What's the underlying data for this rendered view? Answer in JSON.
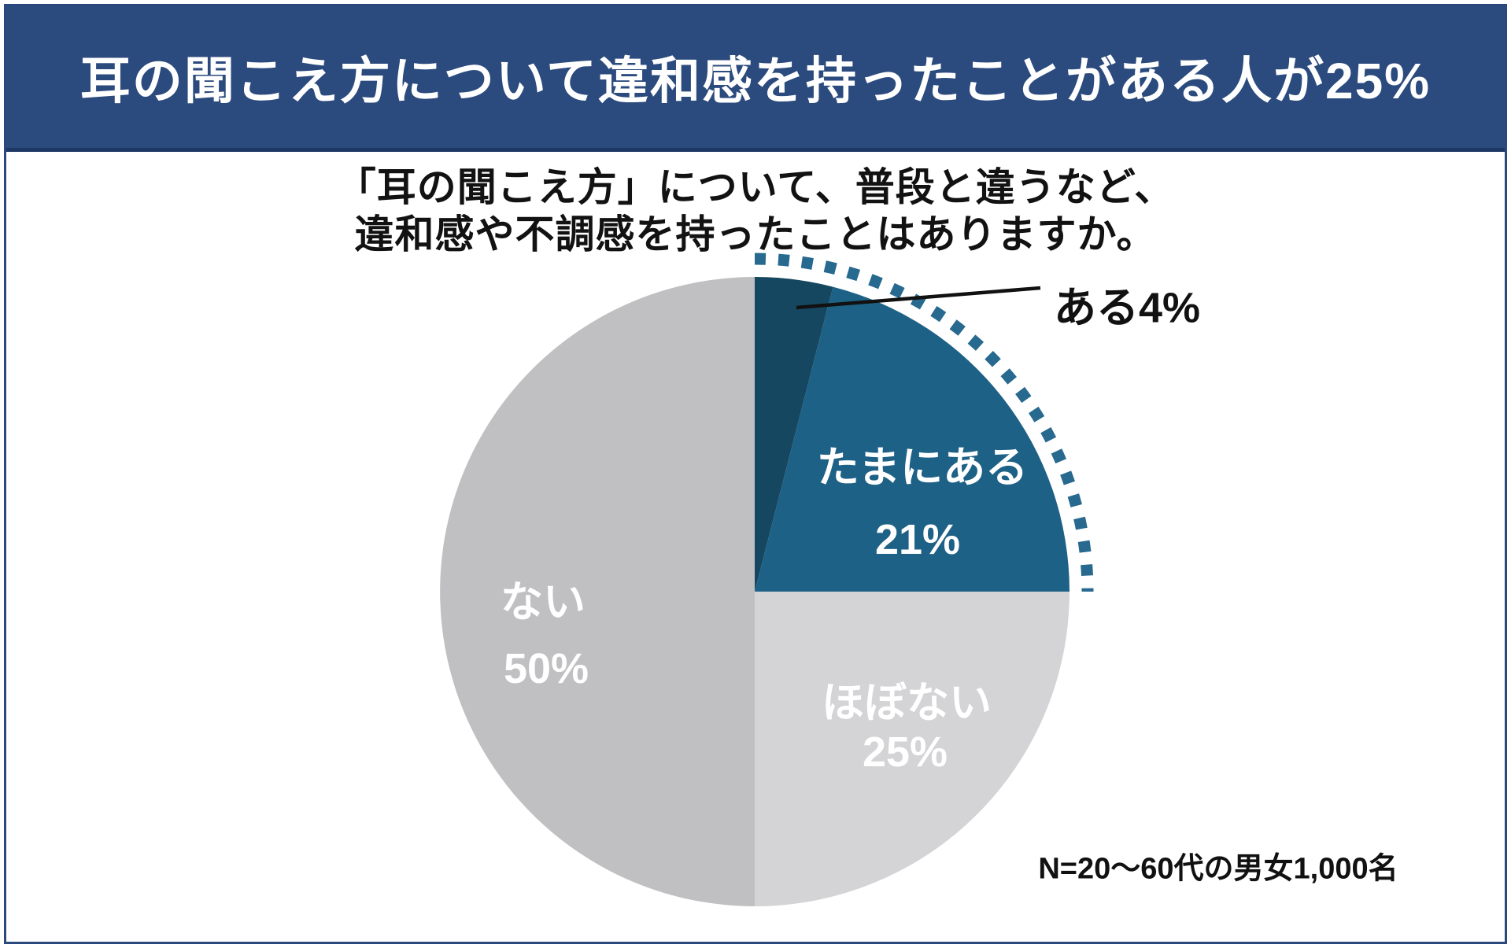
{
  "header": {
    "title": "耳の聞こえ方について違和感を持ったことがある人が25%",
    "bg_color": "#2b4a7d",
    "text_color": "#ffffff"
  },
  "question": {
    "line1": "「耳の聞こえ方」について、普段と違うなど、",
    "line2": "違和感や不調感を持ったことはありますか。"
  },
  "chart_data": {
    "type": "pie",
    "title": "耳の聞こえ方について違和感を持ったことがある人が25%",
    "question": "「耳の聞こえ方」について、普段と違うなど、違和感や不調感を持ったことはありますか。",
    "start_angle": "top",
    "direction": "clockwise",
    "segments": [
      {
        "label": "ある",
        "pct": 4,
        "color": "#154760",
        "callout_label": "ある4%",
        "label_placement": "outside-callout"
      },
      {
        "label": "たまにある",
        "pct": 21,
        "color": "#1e6186",
        "value_label": "21%",
        "text_color": "#ffffff"
      },
      {
        "label": "ほぼない",
        "pct": 25,
        "color": "#d4d4d6",
        "value_label": "25%",
        "text_color": "#ffffff"
      },
      {
        "label": "ない",
        "pct": 50,
        "color": "#c0c0c2",
        "value_label": "50%",
        "text_color": "#ffffff"
      }
    ],
    "highlight_arc": {
      "covers_pct_from": 0,
      "covers_pct_to": 25,
      "style": "dotted",
      "color": "#27698f"
    },
    "n_note": "N=20〜60代の男女1,000名"
  }
}
